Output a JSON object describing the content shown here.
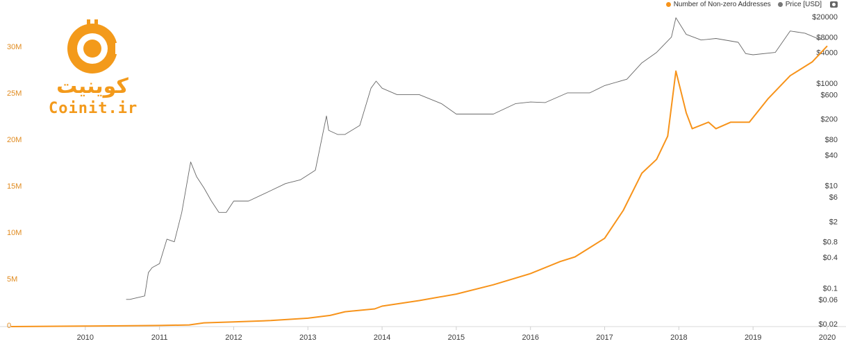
{
  "legend": {
    "addresses_label": "Number of Non-zero Addresses",
    "price_label": "Price [USD]"
  },
  "logo": {
    "fa_text": "کوینیت",
    "en_text": "Coinit.ir"
  },
  "colors": {
    "addresses": "#f7931a",
    "price": "#666666",
    "axis_left": "#e08a1e",
    "brand": "#f39a1b"
  },
  "chart_data": {
    "type": "line",
    "x_ticks": [
      "2010",
      "2011",
      "2012",
      "2013",
      "2014",
      "2015",
      "2016",
      "2017",
      "2018",
      "2019",
      "2020"
    ],
    "xlim": [
      2009.0,
      2020.0
    ],
    "y_left": {
      "ticks": [
        "0",
        "5M",
        "10M",
        "15M",
        "20M",
        "25M",
        "30M"
      ],
      "tick_values": [
        0,
        5000000,
        10000000,
        15000000,
        20000000,
        25000000,
        30000000
      ],
      "ylim": [
        0,
        30000000
      ],
      "scale": "linear"
    },
    "y_right": {
      "ticks": [
        "$20000",
        "$8000",
        "$4000",
        "$1000",
        "$600",
        "$200",
        "$80",
        "$40",
        "$10",
        "$6",
        "$2",
        "$0.8",
        "$0.4",
        "$0.1",
        "$0.06",
        "$0.02"
      ],
      "tick_values": [
        20000,
        8000,
        4000,
        1000,
        600,
        200,
        80,
        40,
        10,
        6,
        2,
        0.8,
        0.4,
        0.1,
        0.06,
        0.02
      ],
      "scale": "log"
    },
    "series": [
      {
        "name": "Number of Non-zero Addresses",
        "axis": "left",
        "color": "#f7931a",
        "x": [
          2009.0,
          2010.0,
          2010.5,
          2011.0,
          2011.4,
          2011.6,
          2012.0,
          2012.5,
          2013.0,
          2013.3,
          2013.5,
          2013.9,
          2014.0,
          2014.5,
          2015.0,
          2015.5,
          2016.0,
          2016.4,
          2016.6,
          2016.8,
          2017.0,
          2017.25,
          2017.5,
          2017.7,
          2017.85,
          2017.96,
          2018.1,
          2018.18,
          2018.4,
          2018.5,
          2018.7,
          2018.95,
          2019.2,
          2019.5,
          2019.8,
          2020.0
        ],
        "y": [
          0,
          50000,
          80000,
          120000,
          180000,
          400000,
          500000,
          650000,
          900000,
          1200000,
          1600000,
          1900000,
          2200000,
          2800000,
          3500000,
          4500000,
          5700000,
          7000000,
          7500000,
          8500000,
          9500000,
          12500000,
          16500000,
          18000000,
          20500000,
          27500000,
          23000000,
          21300000,
          22000000,
          21300000,
          22000000,
          22000000,
          24500000,
          27000000,
          28500000,
          30200000
        ]
      },
      {
        "name": "Price [USD]",
        "axis": "right",
        "color": "#666666",
        "x": [
          2010.55,
          2010.6,
          2010.8,
          2010.85,
          2010.9,
          2011.0,
          2011.1,
          2011.2,
          2011.3,
          2011.42,
          2011.5,
          2011.6,
          2011.7,
          2011.8,
          2011.9,
          2012.0,
          2012.2,
          2012.5,
          2012.7,
          2012.9,
          2013.1,
          2013.25,
          2013.28,
          2013.4,
          2013.5,
          2013.7,
          2013.85,
          2013.92,
          2014.0,
          2014.2,
          2014.5,
          2014.8,
          2015.0,
          2015.3,
          2015.5,
          2015.8,
          2016.0,
          2016.2,
          2016.5,
          2016.8,
          2017.0,
          2017.3,
          2017.5,
          2017.7,
          2017.9,
          2017.96,
          2018.1,
          2018.3,
          2018.5,
          2018.8,
          2018.9,
          2019.0,
          2019.3,
          2019.5,
          2019.7,
          2019.9,
          2020.0
        ],
        "y": [
          0.06,
          0.06,
          0.07,
          0.2,
          0.25,
          0.3,
          0.9,
          0.8,
          3,
          29,
          15,
          9,
          5,
          3,
          3,
          5,
          5,
          8,
          11,
          13,
          20,
          230,
          120,
          100,
          100,
          150,
          800,
          1100,
          800,
          600,
          600,
          400,
          250,
          250,
          250,
          400,
          430,
          420,
          650,
          650,
          900,
          1200,
          2500,
          4000,
          8000,
          19000,
          9000,
          7000,
          7500,
          6300,
          3800,
          3600,
          4000,
          10500,
          9500,
          7200,
          7200
        ]
      }
    ]
  }
}
